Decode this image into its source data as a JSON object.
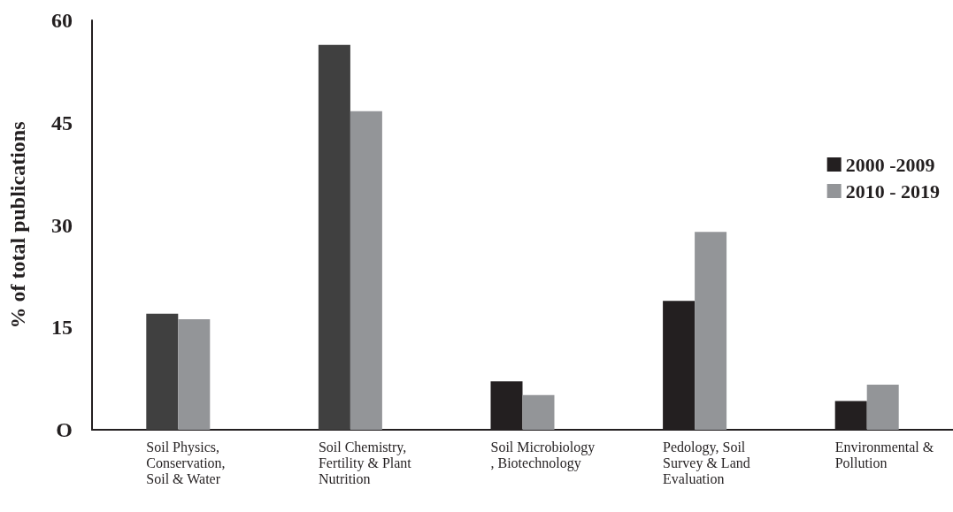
{
  "chart_data": {
    "type": "bar",
    "ylabel": "% of total publications",
    "categories": [
      "Soil Physics, Conservation, Soil & Water",
      "Soil Chemistry, Fertility & Plant Nutrition",
      "Soil Microbiology, Biotechnology",
      "Pedology, Soil Survey & Land Evaluation",
      "Environmental & Pollution"
    ],
    "series": [
      {
        "name": "2000 -2009",
        "color": "#231f20",
        "colors": [
          "#404040",
          "#404040",
          "#231f20",
          "#231f20",
          "#231f20"
        ],
        "values": [
          17.0,
          56.4,
          7.1,
          18.9,
          4.2
        ]
      },
      {
        "name": "2010 - 2019",
        "color": "#939598",
        "values": [
          16.2,
          46.7,
          5.1,
          29.0,
          6.6
        ]
      }
    ],
    "ylim": [
      0,
      60
    ],
    "yticks": [
      {
        "value": 0,
        "label": "O"
      },
      15,
      30,
      45,
      60
    ],
    "grid": false,
    "legend": "right"
  }
}
